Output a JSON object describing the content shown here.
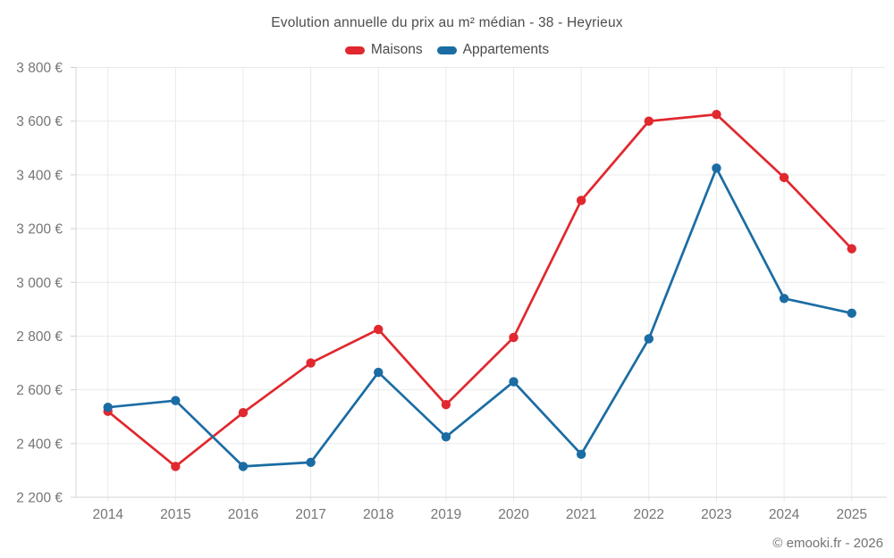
{
  "header": {
    "title": "Evolution annuelle du prix au m² médian - 38 - Heyrieux"
  },
  "footer": {
    "credit": "© emooki.fr - 2026"
  },
  "chart_data": {
    "type": "line",
    "title": "Evolution annuelle du prix au m² médian - 38 - Heyrieux",
    "x": [
      "2014",
      "2015",
      "2016",
      "2017",
      "2018",
      "2019",
      "2020",
      "2021",
      "2022",
      "2023",
      "2024",
      "2025"
    ],
    "series": [
      {
        "name": "Maisons",
        "color": "#e0282e",
        "values": [
          2520,
          2315,
          2515,
          2700,
          2825,
          2545,
          2795,
          3305,
          3600,
          3625,
          3390,
          3125
        ]
      },
      {
        "name": "Appartements",
        "color": "#1b6ca3",
        "values": [
          2535,
          2560,
          2315,
          2330,
          2665,
          2425,
          2630,
          2360,
          2790,
          3425,
          2940,
          2885
        ]
      }
    ],
    "xlabel": "",
    "ylabel": "",
    "ylim": [
      2200,
      3800
    ],
    "ytick_step": 200,
    "ytick_suffix": " €",
    "grid": true,
    "legend_position": "top"
  }
}
